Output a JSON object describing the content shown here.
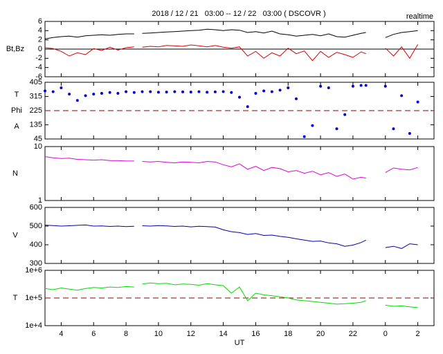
{
  "title": "2018 / 12 / 21   03:00 -- 12 / 22   03:00 ( DSCOVR )",
  "subtitle": "realtime",
  "x_label": "UT",
  "chart_data": [
    {
      "type": "line",
      "y_labels": [
        "Bt,Bz"
      ],
      "ylim": [
        -6,
        6
      ],
      "yticks": [
        6,
        4,
        2,
        0,
        -2,
        -4,
        -6
      ],
      "log": false,
      "reference_line": 0,
      "reference_style": "solid",
      "reference_color": "#000000",
      "xlim": [
        3,
        27
      ],
      "x": [
        3,
        3.5,
        4,
        4.5,
        5,
        5.5,
        6,
        6.5,
        7,
        7.5,
        8,
        8.5,
        8.7,
        9,
        9.5,
        10,
        10.5,
        11,
        11.5,
        12,
        12.5,
        13,
        13.5,
        14,
        14.5,
        15,
        15.5,
        16,
        16.5,
        17,
        17.5,
        18,
        18.5,
        19,
        19.5,
        20,
        20.5,
        21,
        21.5,
        22,
        22.5,
        22.8,
        23.4,
        24,
        24.5,
        25,
        25.5,
        26
      ],
      "series": [
        {
          "name": "Bt",
          "color": "#000000",
          "values": [
            2.2,
            2.5,
            2.7,
            2.8,
            2.6,
            2.9,
            3.0,
            3.1,
            3.0,
            3.2,
            3.3,
            3.3,
            null,
            3.4,
            3.5,
            3.6,
            3.7,
            3.8,
            3.9,
            4.0,
            4.1,
            4.3,
            4.2,
            4.0,
            4.2,
            4.1,
            3.6,
            3.8,
            3.5,
            3.9,
            3.3,
            3.1,
            2.8,
            3.0,
            3.2,
            2.9,
            3.3,
            2.7,
            2.6,
            3.0,
            3.4,
            3.6,
            null,
            2.5,
            3.2,
            3.6,
            3.8,
            4.0
          ]
        },
        {
          "name": "Bz",
          "color": "#dd0000",
          "values": [
            0.3,
            0.1,
            -0.5,
            -1.5,
            -0.8,
            -1.2,
            0.1,
            -0.3,
            0.4,
            -0.2,
            0.3,
            0.5,
            null,
            0.4,
            0.6,
            0.5,
            0.8,
            0.7,
            0.6,
            0.9,
            0.7,
            0.5,
            0.8,
            0.4,
            0.2,
            0.5,
            -1.5,
            -0.5,
            -2.0,
            -0.8,
            -1.5,
            0.2,
            -1.0,
            -0.4,
            -2.5,
            -0.5,
            -1.8,
            -0.7,
            -1.2,
            -1.8,
            -0.6,
            -1.0,
            null,
            0.2,
            -1.5,
            0.5,
            -2.0,
            1.0
          ]
        }
      ]
    },
    {
      "type": "scatter",
      "y_labels": [
        "T",
        "Phi",
        "A"
      ],
      "ylim": [
        45,
        405
      ],
      "yticks": [
        405,
        315,
        225,
        135,
        45
      ],
      "log": false,
      "reference_line": 225,
      "reference_style": "dashed",
      "reference_color": "#8b0000",
      "xlim": [
        3,
        27
      ],
      "x": [
        3,
        3.5,
        4,
        4.5,
        5,
        5.5,
        6,
        6.5,
        7,
        7.5,
        8,
        8.5,
        8.7,
        9,
        9.5,
        10,
        10.5,
        11,
        11.5,
        12,
        12.5,
        13,
        13.5,
        14,
        14.5,
        15,
        15.5,
        16,
        16.5,
        17,
        17.5,
        18,
        18.5,
        19,
        19.5,
        20,
        20.5,
        21,
        21.5,
        22,
        22.5,
        22.8,
        23.4,
        24,
        24.5,
        25,
        25.5,
        26
      ],
      "series": [
        {
          "name": "Phi",
          "color": "#0000dd",
          "values": [
            350,
            345,
            370,
            330,
            290,
            320,
            330,
            335,
            340,
            335,
            345,
            340,
            null,
            345,
            345,
            342,
            343,
            345,
            344,
            343,
            345,
            342,
            344,
            346,
            340,
            310,
            250,
            335,
            350,
            345,
            355,
            370,
            300,
            60,
            130,
            380,
            370,
            110,
            200,
            380,
            385,
            385,
            null,
            380,
            110,
            320,
            80,
            280
          ]
        }
      ]
    },
    {
      "type": "line",
      "y_labels": [
        "N"
      ],
      "ylim": [
        1,
        10
      ],
      "yticks": [
        10,
        1
      ],
      "log": true,
      "xlim": [
        3,
        27
      ],
      "x": [
        3,
        3.5,
        4,
        4.5,
        5,
        5.5,
        6,
        6.5,
        7,
        7.5,
        8,
        8.5,
        8.7,
        9,
        9.5,
        10,
        10.5,
        11,
        11.5,
        12,
        12.5,
        13,
        13.5,
        14,
        14.5,
        15,
        15.5,
        16,
        16.5,
        17,
        17.5,
        18,
        18.5,
        19,
        19.5,
        20,
        20.5,
        21,
        21.5,
        22,
        22.5,
        22.8,
        23.4,
        24,
        24.5,
        25,
        25.5,
        26
      ],
      "series": [
        {
          "name": "N",
          "color": "#dd00dd",
          "values": [
            6.5,
            6.2,
            6.0,
            6.1,
            5.8,
            5.7,
            5.6,
            5.7,
            5.5,
            5.5,
            5.4,
            5.4,
            null,
            5.3,
            5.2,
            5.3,
            5.1,
            5.0,
            5.2,
            5.1,
            5.0,
            5.3,
            5.2,
            4.6,
            4.2,
            4.8,
            3.8,
            4.3,
            3.6,
            4.1,
            3.9,
            3.4,
            3.6,
            3.2,
            3.5,
            3.0,
            3.3,
            2.8,
            3.1,
            2.5,
            2.7,
            2.6,
            null,
            3.3,
            4.0,
            3.8,
            3.7,
            4.1
          ]
        }
      ]
    },
    {
      "type": "line",
      "y_labels": [
        "V"
      ],
      "ylim": [
        300,
        600
      ],
      "yticks": [
        600,
        500,
        400,
        300
      ],
      "log": false,
      "xlim": [
        3,
        27
      ],
      "x": [
        3,
        3.5,
        4,
        4.5,
        5,
        5.5,
        6,
        6.5,
        7,
        7.5,
        8,
        8.5,
        8.7,
        9,
        9.5,
        10,
        10.5,
        11,
        11.5,
        12,
        12.5,
        13,
        13.5,
        14,
        14.5,
        15,
        15.5,
        16,
        16.5,
        17,
        17.5,
        18,
        18.5,
        19,
        19.5,
        20,
        20.5,
        21,
        21.5,
        22,
        22.5,
        22.8,
        23.4,
        24,
        24.5,
        25,
        25.5,
        26
      ],
      "series": [
        {
          "name": "V",
          "color": "#0000aa",
          "values": [
            505,
            503,
            500,
            502,
            504,
            506,
            500,
            501,
            498,
            500,
            497,
            499,
            null,
            502,
            500,
            503,
            501,
            498,
            500,
            496,
            499,
            497,
            495,
            480,
            470,
            465,
            455,
            460,
            450,
            452,
            445,
            440,
            432,
            425,
            418,
            420,
            410,
            405,
            392,
            398,
            412,
            425,
            null,
            385,
            392,
            380,
            405,
            400
          ]
        }
      ]
    },
    {
      "type": "line",
      "y_labels": [
        "T"
      ],
      "ylim": [
        10000,
        1000000
      ],
      "log": true,
      "yticks": [
        {
          "value": 1000000,
          "label": "1e+6"
        },
        {
          "value": 100000,
          "label": "1e+5"
        },
        {
          "value": 10000,
          "label": "1e+4"
        }
      ],
      "reference_line": 100000,
      "reference_style": "dashed",
      "reference_color": "#8b0000",
      "xlim": [
        3,
        27
      ],
      "xticks": [
        4,
        6,
        8,
        10,
        12,
        14,
        16,
        18,
        20,
        22,
        {
          "value": 24,
          "label": "0"
        },
        {
          "value": 26,
          "label": "2"
        }
      ],
      "x": [
        3,
        3.5,
        4,
        4.5,
        5,
        5.5,
        6,
        6.5,
        7,
        7.5,
        8,
        8.5,
        8.7,
        9,
        9.5,
        10,
        10.5,
        11,
        11.5,
        12,
        12.5,
        13,
        13.5,
        14,
        14.5,
        15,
        15.5,
        16,
        16.5,
        17,
        17.5,
        18,
        18.5,
        19,
        19.5,
        20,
        20.5,
        21,
        21.5,
        22,
        22.5,
        22.8,
        23.4,
        24,
        24.5,
        25,
        25.5,
        26
      ],
      "series": [
        {
          "name": "T",
          "color": "#00dd00",
          "values": [
            220000,
            200000,
            230000,
            210000,
            190000,
            220000,
            240000,
            230000,
            250000,
            240000,
            260000,
            250000,
            null,
            320000,
            350000,
            330000,
            340000,
            300000,
            320000,
            310000,
            290000,
            330000,
            300000,
            280000,
            150000,
            250000,
            80000,
            150000,
            130000,
            120000,
            110000,
            100000,
            85000,
            80000,
            75000,
            70000,
            65000,
            60000,
            62000,
            65000,
            70000,
            80000,
            null,
            55000,
            50000,
            52000,
            48000,
            45000
          ]
        }
      ]
    }
  ]
}
